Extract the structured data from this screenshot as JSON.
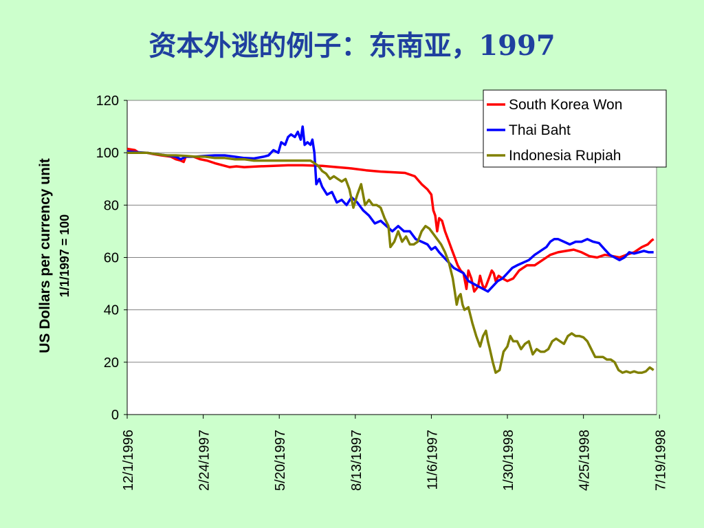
{
  "slide": {
    "title": "资本外逃的例子：东南亚，1997"
  },
  "chart_data": {
    "type": "line",
    "title": "资本外逃的例子：东南亚，1997",
    "ylabel": "US Dollars per currency unit",
    "ylabel_sub": "1/1/1997 = 100",
    "xlabel": "",
    "ylim": [
      0,
      120
    ],
    "yticks": [
      "0",
      "20",
      "40",
      "60",
      "80",
      "100",
      "120"
    ],
    "xticks": [
      "12/1/1996",
      "2/24/1997",
      "5/20/1997",
      "8/13/1997",
      "11/6/1997",
      "1/30/1998",
      "4/25/1998",
      "7/19/1998"
    ],
    "grid": true,
    "legend": "top-right",
    "series": [
      {
        "name": "South Korea Won",
        "color": "#ff0000",
        "points": [
          [
            0,
            101.5
          ],
          [
            8,
            101
          ],
          [
            12,
            100
          ],
          [
            20,
            100
          ],
          [
            27,
            99.5
          ],
          [
            35,
            99
          ],
          [
            45,
            98.5
          ],
          [
            50,
            97.5
          ],
          [
            55,
            97
          ],
          [
            58,
            96.5
          ],
          [
            60,
            98.5
          ],
          [
            68,
            98.5
          ],
          [
            75,
            97.5
          ],
          [
            82,
            97
          ],
          [
            90,
            96
          ],
          [
            100,
            95
          ],
          [
            105,
            94.5
          ],
          [
            112,
            94.8
          ],
          [
            120,
            94.5
          ],
          [
            135,
            94.8
          ],
          [
            150,
            95
          ],
          [
            165,
            95.2
          ],
          [
            180,
            95.2
          ],
          [
            200,
            95
          ],
          [
            215,
            94.5
          ],
          [
            230,
            94
          ],
          [
            245,
            93.3
          ],
          [
            260,
            92.8
          ],
          [
            275,
            92.5
          ],
          [
            285,
            92.3
          ],
          [
            295,
            91
          ],
          [
            302,
            88
          ],
          [
            308,
            86
          ],
          [
            312,
            84
          ],
          [
            314,
            78
          ],
          [
            316,
            76
          ],
          [
            318,
            70
          ],
          [
            320,
            75
          ],
          [
            323,
            74
          ],
          [
            326,
            70
          ],
          [
            330,
            66
          ],
          [
            333,
            63
          ],
          [
            336,
            60
          ],
          [
            339,
            57
          ],
          [
            342,
            55
          ],
          [
            345,
            54
          ],
          [
            348,
            48
          ],
          [
            350,
            55
          ],
          [
            353,
            52
          ],
          [
            356,
            47
          ],
          [
            358,
            48
          ],
          [
            360,
            49
          ],
          [
            362,
            53
          ],
          [
            364,
            50
          ],
          [
            366,
            48
          ],
          [
            368,
            49
          ],
          [
            371,
            52
          ],
          [
            374,
            55
          ],
          [
            376,
            54
          ],
          [
            378,
            51
          ],
          [
            381,
            53
          ],
          [
            385,
            52
          ],
          [
            390,
            51
          ],
          [
            396,
            52
          ],
          [
            402,
            55
          ],
          [
            410,
            57
          ],
          [
            418,
            57
          ],
          [
            426,
            59
          ],
          [
            434,
            61
          ],
          [
            442,
            62
          ],
          [
            450,
            62.5
          ],
          [
            458,
            63
          ],
          [
            466,
            62
          ],
          [
            474,
            60.5
          ],
          [
            482,
            60
          ],
          [
            490,
            61
          ],
          [
            498,
            60.5
          ],
          [
            505,
            60
          ],
          [
            512,
            61
          ],
          [
            520,
            62
          ],
          [
            528,
            64
          ],
          [
            534,
            65
          ],
          [
            538,
            66.5
          ],
          [
            540,
            67
          ]
        ]
      },
      {
        "name": "Thai Baht",
        "color": "#0000ff",
        "points": [
          [
            0,
            100.5
          ],
          [
            10,
            100.2
          ],
          [
            20,
            100
          ],
          [
            30,
            99.5
          ],
          [
            40,
            99
          ],
          [
            50,
            98.5
          ],
          [
            55,
            97.5
          ],
          [
            60,
            98.5
          ],
          [
            70,
            98.5
          ],
          [
            80,
            98.8
          ],
          [
            90,
            99
          ],
          [
            100,
            99
          ],
          [
            110,
            98.5
          ],
          [
            120,
            98
          ],
          [
            130,
            97.8
          ],
          [
            140,
            98.5
          ],
          [
            145,
            99
          ],
          [
            150,
            101
          ],
          [
            155,
            100
          ],
          [
            158,
            104
          ],
          [
            162,
            103
          ],
          [
            165,
            106
          ],
          [
            168,
            107
          ],
          [
            172,
            106
          ],
          [
            175,
            108
          ],
          [
            178,
            105
          ],
          [
            180,
            110
          ],
          [
            182,
            103
          ],
          [
            185,
            104
          ],
          [
            188,
            103
          ],
          [
            190,
            105
          ],
          [
            192,
            100
          ],
          [
            194,
            88
          ],
          [
            197,
            90
          ],
          [
            200,
            87
          ],
          [
            205,
            84
          ],
          [
            210,
            85
          ],
          [
            215,
            81
          ],
          [
            220,
            82
          ],
          [
            225,
            80
          ],
          [
            230,
            83
          ],
          [
            236,
            81
          ],
          [
            242,
            78
          ],
          [
            248,
            76
          ],
          [
            254,
            73
          ],
          [
            260,
            74
          ],
          [
            266,
            72
          ],
          [
            272,
            70
          ],
          [
            278,
            72
          ],
          [
            284,
            70
          ],
          [
            290,
            70
          ],
          [
            296,
            67
          ],
          [
            302,
            66
          ],
          [
            308,
            65
          ],
          [
            312,
            63
          ],
          [
            316,
            64
          ],
          [
            320,
            62
          ],
          [
            325,
            60
          ],
          [
            330,
            58
          ],
          [
            335,
            56
          ],
          [
            340,
            55
          ],
          [
            345,
            54
          ],
          [
            350,
            51
          ],
          [
            355,
            50
          ],
          [
            360,
            49
          ],
          [
            365,
            48
          ],
          [
            370,
            47
          ],
          [
            375,
            49
          ],
          [
            380,
            51
          ],
          [
            385,
            52
          ],
          [
            390,
            54
          ],
          [
            395,
            56
          ],
          [
            400,
            57
          ],
          [
            406,
            58
          ],
          [
            412,
            59
          ],
          [
            418,
            61
          ],
          [
            422,
            62
          ],
          [
            426,
            63
          ],
          [
            430,
            64
          ],
          [
            434,
            66
          ],
          [
            438,
            67
          ],
          [
            442,
            67
          ],
          [
            448,
            66
          ],
          [
            454,
            65
          ],
          [
            460,
            66
          ],
          [
            466,
            66
          ],
          [
            472,
            67
          ],
          [
            478,
            66
          ],
          [
            484,
            65.5
          ],
          [
            490,
            63
          ],
          [
            495,
            61
          ],
          [
            500,
            60
          ],
          [
            505,
            59
          ],
          [
            510,
            60
          ],
          [
            515,
            62
          ],
          [
            520,
            61.5
          ],
          [
            525,
            62
          ],
          [
            530,
            62.5
          ],
          [
            535,
            62
          ],
          [
            540,
            62
          ]
        ]
      },
      {
        "name": "Indonesia Rupiah",
        "color": "#808000",
        "points": [
          [
            0,
            100
          ],
          [
            10,
            100
          ],
          [
            20,
            100
          ],
          [
            30,
            99.5
          ],
          [
            40,
            99
          ],
          [
            50,
            99
          ],
          [
            60,
            98.8
          ],
          [
            70,
            98.5
          ],
          [
            80,
            98.5
          ],
          [
            90,
            98
          ],
          [
            100,
            98
          ],
          [
            110,
            97.5
          ],
          [
            120,
            97.5
          ],
          [
            130,
            97
          ],
          [
            140,
            97
          ],
          [
            150,
            97
          ],
          [
            160,
            97
          ],
          [
            170,
            97
          ],
          [
            180,
            97
          ],
          [
            188,
            97
          ],
          [
            192,
            96
          ],
          [
            196,
            95
          ],
          [
            200,
            93
          ],
          [
            204,
            92
          ],
          [
            208,
            90
          ],
          [
            212,
            91
          ],
          [
            216,
            90
          ],
          [
            220,
            89
          ],
          [
            224,
            90
          ],
          [
            228,
            86
          ],
          [
            232,
            79
          ],
          [
            236,
            84
          ],
          [
            240,
            88
          ],
          [
            244,
            80
          ],
          [
            248,
            82
          ],
          [
            252,
            80
          ],
          [
            256,
            80
          ],
          [
            260,
            79
          ],
          [
            264,
            75
          ],
          [
            268,
            72
          ],
          [
            270,
            64
          ],
          [
            274,
            66
          ],
          [
            278,
            70
          ],
          [
            282,
            66
          ],
          [
            286,
            68
          ],
          [
            290,
            65
          ],
          [
            294,
            65
          ],
          [
            298,
            66
          ],
          [
            302,
            70
          ],
          [
            306,
            72
          ],
          [
            310,
            71
          ],
          [
            314,
            69
          ],
          [
            318,
            67
          ],
          [
            322,
            65
          ],
          [
            326,
            62
          ],
          [
            330,
            58
          ],
          [
            334,
            52
          ],
          [
            336,
            47
          ],
          [
            338,
            42
          ],
          [
            340,
            45
          ],
          [
            342,
            46
          ],
          [
            344,
            42
          ],
          [
            346,
            40
          ],
          [
            350,
            41
          ],
          [
            354,
            35
          ],
          [
            358,
            30
          ],
          [
            362,
            26
          ],
          [
            365,
            30
          ],
          [
            368,
            32
          ],
          [
            370,
            28
          ],
          [
            372,
            25
          ],
          [
            375,
            20
          ],
          [
            378,
            16
          ],
          [
            382,
            17
          ],
          [
            386,
            24
          ],
          [
            390,
            26
          ],
          [
            393,
            30
          ],
          [
            396,
            28
          ],
          [
            400,
            28
          ],
          [
            404,
            25
          ],
          [
            408,
            27
          ],
          [
            412,
            28
          ],
          [
            416,
            23
          ],
          [
            420,
            25
          ],
          [
            424,
            24
          ],
          [
            428,
            24
          ],
          [
            432,
            25
          ],
          [
            436,
            28
          ],
          [
            440,
            29
          ],
          [
            444,
            28
          ],
          [
            448,
            27
          ],
          [
            452,
            30
          ],
          [
            456,
            31
          ],
          [
            460,
            30
          ],
          [
            464,
            30
          ],
          [
            468,
            29.5
          ],
          [
            472,
            28
          ],
          [
            476,
            25
          ],
          [
            480,
            22
          ],
          [
            484,
            22
          ],
          [
            488,
            22
          ],
          [
            492,
            21
          ],
          [
            496,
            21
          ],
          [
            500,
            20
          ],
          [
            504,
            17
          ],
          [
            508,
            16
          ],
          [
            512,
            16.5
          ],
          [
            516,
            16
          ],
          [
            520,
            16.5
          ],
          [
            524,
            16
          ],
          [
            528,
            16
          ],
          [
            532,
            16.5
          ],
          [
            536,
            18
          ],
          [
            540,
            17
          ]
        ]
      }
    ]
  }
}
